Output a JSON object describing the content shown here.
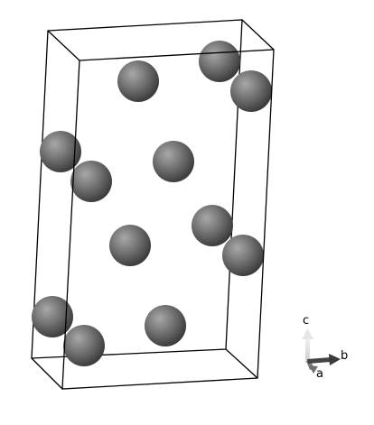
{
  "scene": {
    "background": "#ffffff",
    "cell_edge_color": "#000000",
    "atom_color": "#808080",
    "atom_count": 12
  },
  "axes": {
    "a": {
      "label": "a",
      "color": "#808080"
    },
    "b": {
      "label": "b",
      "color": "#404040"
    },
    "c": {
      "label": "c",
      "color": "#d9d9d9"
    }
  }
}
